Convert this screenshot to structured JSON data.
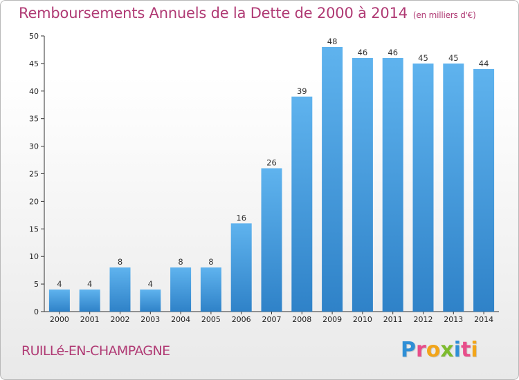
{
  "header": {
    "title": "Remboursements Annuels de la Dette de 2000 à 2014",
    "unit": "(en milliers d'€)"
  },
  "footer": {
    "commune": "RUILLé-EN-CHAMPAGNE",
    "logo": [
      "P",
      "r",
      "o",
      "x",
      "i",
      "t",
      "i"
    ],
    "logo_colors": [
      "#2f8fd6",
      "#e84d8a",
      "#f2a51a",
      "#7dbb2e",
      "#2f8fd6",
      "#e84d8a",
      "#f2a51a"
    ]
  },
  "chart_data": {
    "type": "bar",
    "title": "Remboursements Annuels de la Dette de 2000 à 2014",
    "categories": [
      "2000",
      "2001",
      "2002",
      "2003",
      "2004",
      "2005",
      "2006",
      "2007",
      "2008",
      "2009",
      "2010",
      "2011",
      "2012",
      "2013",
      "2014"
    ],
    "values": [
      4,
      4,
      8,
      4,
      8,
      8,
      16,
      26,
      39,
      48,
      46,
      46,
      45,
      45,
      44
    ],
    "ylim": [
      0,
      50
    ],
    "yticks": [
      0,
      5,
      10,
      15,
      20,
      25,
      30,
      35,
      40,
      45,
      50
    ],
    "grid": false,
    "bar_color": "#3a95d8",
    "bar_color_light": "#5fb3ee"
  }
}
